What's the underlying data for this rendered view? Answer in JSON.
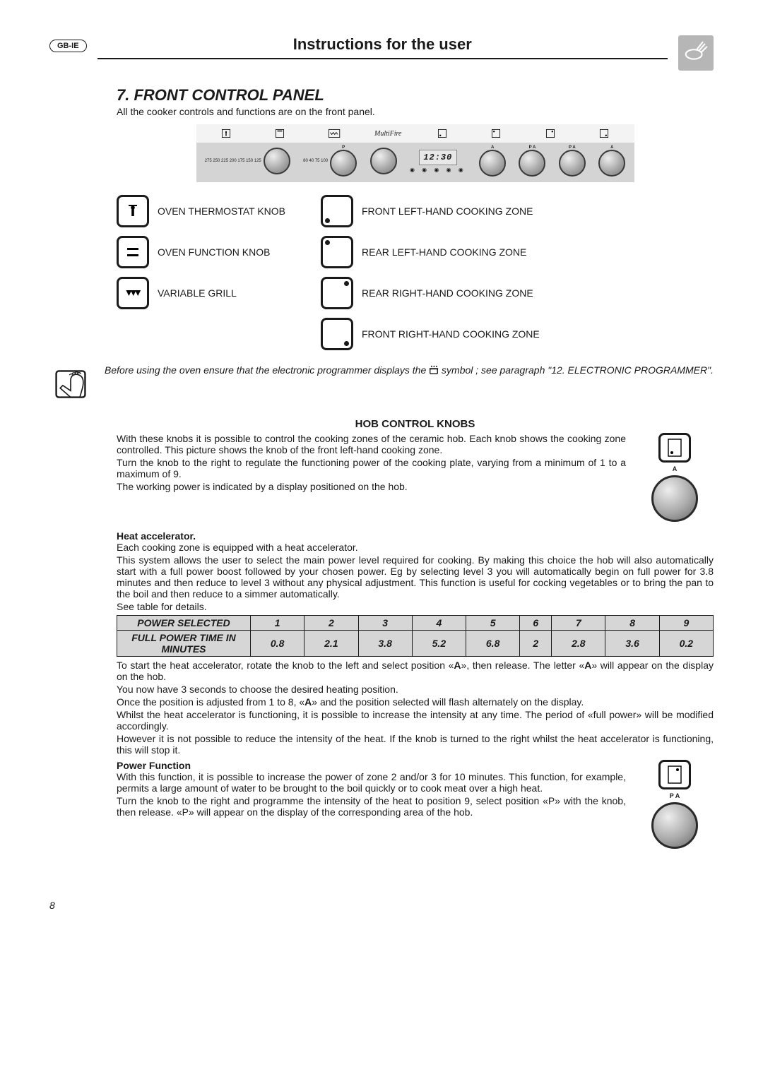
{
  "lang_badge": "GB-IE",
  "header_title": "Instructions for the user",
  "section_number": "7.",
  "section_title": "FRONT CONTROL PANEL",
  "intro": "All the cooker controls and functions are on the front panel.",
  "panel": {
    "clock": "12:30",
    "multifire": "MultiFire",
    "scale_thermo": "275\n250\n225\n200 175 150 125",
    "scale_func": "80\n40\n75\n100",
    "letter_p": "P",
    "letter_a": "A",
    "letter_pa": "P   A"
  },
  "legend": {
    "left": [
      "OVEN THERMOSTAT KNOB",
      "OVEN FUNCTION KNOB",
      "VARIABLE GRILL"
    ],
    "right": [
      "FRONT LEFT-HAND COOKING ZONE",
      "REAR LEFT-HAND COOKING ZONE",
      "REAR RIGHT-HAND COOKING ZONE",
      "FRONT RIGHT-HAND COOKING ZONE"
    ]
  },
  "note_before": "Before using the oven ensure that the electronic programmer displays the ",
  "note_after": " symbol ; see paragraph \"12. ELECTRONIC PROGRAMMER\".",
  "hob_heading": "HOB CONTROL KNOBS",
  "hob_p1": "With these knobs it is possible to control the cooking zones of the ceramic hob. Each knob shows the cooking zone controlled. This picture shows the knob of the front left-hand cooking zone.",
  "hob_p2": "Turn the knob to the right to regulate the functioning power of the cooking plate, varying from a minimum of 1 to a maximum of 9.",
  "hob_p3": "The working power is indicated by a display positioned on the hob.",
  "heat_head": "Heat accelerator.",
  "heat_p1": "Each cooking zone is equipped with a heat accelerator.",
  "heat_p2": "This system allows the user to select the main power level required for cooking. By making this choice the hob will also automatically start with a full power boost followed by your chosen power. Eg by selecting level 3 you will automatically begin on full power for 3.8 minutes and then reduce to level 3 without any physical adjustment. This function is useful for cocking vegetables or to bring the pan to the boil and then reduce to a simmer automatically.",
  "heat_p3": "See table for details.",
  "table": {
    "row1_label": "POWER SELECTED",
    "row1": [
      "1",
      "2",
      "3",
      "4",
      "5",
      "6",
      "7",
      "8",
      "9"
    ],
    "row2_label": "FULL POWER TIME IN MINUTES",
    "row2": [
      "0.8",
      "2.1",
      "3.8",
      "5.2",
      "6.8",
      "2",
      "2.8",
      "3.6",
      "0.2"
    ]
  },
  "after_table_1": "To start the heat accelerator, rotate the knob to the left and select position «A», then release. The letter «A» will appear on the display on the hob.",
  "after_table_2": "You now have 3 seconds to choose the desired heating position.",
  "after_table_3": "Once the position is adjusted from 1 to 8, «A» and the position selected will flash alternately on the display.",
  "after_table_4": "Whilst the heat accelerator is functioning, it is possible to increase the intensity at any time. The period of «full power» will be modified accordingly.",
  "after_table_5": "However it is not possible to reduce the intensity of the heat. If the knob is turned to the right whilst the heat accelerator is functioning, this will stop it.",
  "power_func_head": "Power Function",
  "power_func_p1": "With this function, it is possible to increase the power of zone 2 and/or 3 for 10 minutes. This function, for example, permits a large amount of water to be brought to the boil quickly or to cook meat over a high heat.",
  "power_func_p2": "Turn the knob to the right and programme the intensity of the heat to position 9, select position «P» with the knob, then release. «P» will appear on the display of the corresponding area of the hob.",
  "page_number": "8",
  "label_a": "A",
  "label_pa": "P   A"
}
